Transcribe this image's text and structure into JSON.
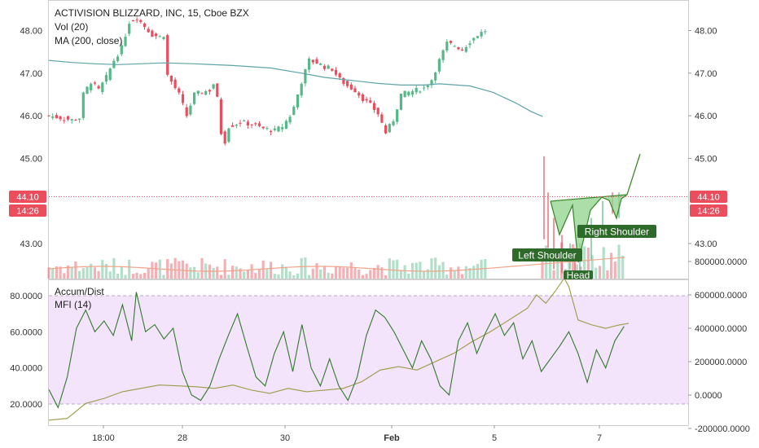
{
  "legend": {
    "symbol": "ACTIVISION BLIZZARD, INC, 15, Cboe BZX",
    "volume": "Vol (20)",
    "ma": "MA (200, close)",
    "accum": "Accum/Dist",
    "mfi": "MFI (14)"
  },
  "price_badge": {
    "price": "44.10",
    "countdown": "14:26"
  },
  "colors": {
    "up": "#53b987",
    "down": "#eb4d5c",
    "ma": "#5ea4a6",
    "pattern_fill": "#8fd38c",
    "pattern_line": "#3f8a2f",
    "label_bg": "#2e6b2a",
    "price_badge": "#eb4d5c",
    "mfi_band": "#f3e3fb",
    "accum_line": "#9c9a45",
    "mfi_line": "#2f7a2a"
  },
  "chart_data": [
    {
      "type": "candlestick",
      "title": "ACTIVISION BLIZZARD, INC, 15, Cboe BZX",
      "y_axis_ticks": [
        43.0,
        45.0,
        46.0,
        47.0,
        48.0
      ],
      "ylim": [
        42.2,
        48.45
      ],
      "x_axis_ticks": [
        "18:00",
        "28",
        "30",
        "Feb",
        "5",
        "7"
      ],
      "last_price": 44.1,
      "close_path": [
        [
          0,
          46.0
        ],
        [
          3,
          45.95
        ],
        [
          6,
          45.9
        ],
        [
          8,
          45.95
        ],
        [
          9,
          46.5
        ],
        [
          11,
          46.8
        ],
        [
          13,
          46.6
        ],
        [
          15,
          46.9
        ],
        [
          17,
          47.3
        ],
        [
          19,
          47.6
        ],
        [
          21,
          48.2
        ],
        [
          23,
          48.3
        ],
        [
          25,
          48.1
        ],
        [
          27,
          47.9
        ],
        [
          29,
          47.85
        ],
        [
          30,
          47.9
        ],
        [
          31,
          46.95
        ],
        [
          34,
          46.5
        ],
        [
          36,
          46.0
        ],
        [
          38,
          46.5
        ],
        [
          40,
          46.55
        ],
        [
          42,
          46.6
        ],
        [
          43,
          46.75
        ],
        [
          44,
          46.4
        ],
        [
          45,
          45.6
        ],
        [
          46,
          45.4
        ],
        [
          47,
          45.75
        ],
        [
          50,
          45.85
        ],
        [
          53,
          45.8
        ],
        [
          56,
          45.7
        ],
        [
          59,
          45.65
        ],
        [
          61,
          45.75
        ],
        [
          63,
          46.0
        ],
        [
          64,
          46.2
        ],
        [
          66,
          46.8
        ],
        [
          68,
          47.3
        ],
        [
          70,
          47.25
        ],
        [
          72,
          47.15
        ],
        [
          74,
          47.1
        ],
        [
          76,
          46.85
        ],
        [
          78,
          46.7
        ],
        [
          80,
          46.6
        ],
        [
          82,
          46.4
        ],
        [
          84,
          46.25
        ],
        [
          86,
          46.05
        ],
        [
          88,
          45.6
        ],
        [
          90,
          45.9
        ],
        [
          92,
          46.5
        ],
        [
          94,
          46.55
        ],
        [
          96,
          46.6
        ],
        [
          98,
          46.65
        ],
        [
          100,
          46.85
        ],
        [
          102,
          47.3
        ],
        [
          104,
          47.7
        ],
        [
          106,
          47.65
        ],
        [
          108,
          47.55
        ],
        [
          110,
          47.75
        ],
        [
          112,
          47.9
        ],
        [
          114,
          48.0
        ]
      ],
      "ma_points": [
        [
          0,
          47.3
        ],
        [
          6,
          47.25
        ],
        [
          12,
          47.22
        ],
        [
          18,
          47.2
        ],
        [
          24,
          47.22
        ],
        [
          30,
          47.24
        ],
        [
          38,
          47.22
        ],
        [
          48,
          47.18
        ],
        [
          58,
          47.12
        ],
        [
          66,
          47.0
        ],
        [
          72,
          46.9
        ],
        [
          80,
          46.82
        ],
        [
          86,
          46.76
        ],
        [
          92,
          46.72
        ],
        [
          98,
          46.72
        ],
        [
          102,
          46.75
        ],
        [
          110,
          46.7
        ],
        [
          116,
          46.55
        ],
        [
          122,
          46.3
        ],
        [
          126,
          46.1
        ],
        [
          129,
          45.98
        ]
      ],
      "volume": {
        "name": "Vol (20)"
      },
      "pattern": {
        "name": "Inverse Head and Shoulders",
        "labels": [
          "Left Shoulder",
          "Head",
          "Right Shoulder"
        ]
      }
    },
    {
      "type": "line",
      "series": [
        {
          "name": "Accum/Dist"
        },
        {
          "name": "MFI (14)"
        }
      ],
      "left_ticks": [
        20.0,
        40.0,
        60.0,
        80.0
      ],
      "left_tick_labels": [
        "20.0000",
        "40.0000",
        "60.0000",
        "80.0000"
      ],
      "right_ticks": [
        -200000,
        0,
        200000,
        400000,
        600000,
        800000
      ],
      "right_tick_labels": [
        "-200000.0000",
        "0.0000",
        "200000.0000",
        "400000.0000",
        "600000.0000",
        "800000.0000"
      ],
      "mfi_band": [
        20,
        80
      ],
      "mfi": [
        [
          0,
          28
        ],
        [
          2,
          18
        ],
        [
          4,
          35
        ],
        [
          6,
          62
        ],
        [
          8,
          72
        ],
        [
          10,
          60
        ],
        [
          12,
          66
        ],
        [
          14,
          58
        ],
        [
          16,
          75
        ],
        [
          18,
          55
        ],
        [
          19,
          82
        ],
        [
          21,
          60
        ],
        [
          23,
          64
        ],
        [
          25,
          56
        ],
        [
          27,
          62
        ],
        [
          29,
          38
        ],
        [
          31,
          25
        ],
        [
          33,
          22
        ],
        [
          35,
          30
        ],
        [
          37,
          45
        ],
        [
          39,
          58
        ],
        [
          41,
          70
        ],
        [
          43,
          52
        ],
        [
          45,
          35
        ],
        [
          47,
          30
        ],
        [
          49,
          48
        ],
        [
          51,
          60
        ],
        [
          53,
          38
        ],
        [
          55,
          64
        ],
        [
          57,
          40
        ],
        [
          59,
          30
        ],
        [
          61,
          45
        ],
        [
          63,
          30
        ],
        [
          65,
          22
        ],
        [
          67,
          35
        ],
        [
          69,
          58
        ],
        [
          71,
          72
        ],
        [
          73,
          68
        ],
        [
          75,
          60
        ],
        [
          77,
          50
        ],
        [
          79,
          40
        ],
        [
          81,
          55
        ],
        [
          83,
          45
        ],
        [
          85,
          30
        ],
        [
          87,
          25
        ],
        [
          89,
          55
        ],
        [
          91,
          65
        ],
        [
          93,
          48
        ],
        [
          95,
          60
        ],
        [
          97,
          70
        ],
        [
          99,
          58
        ],
        [
          101,
          65
        ],
        [
          103,
          45
        ],
        [
          105,
          55
        ],
        [
          107,
          38
        ],
        [
          109,
          45
        ],
        [
          111,
          52
        ],
        [
          113,
          60
        ],
        [
          115,
          48
        ],
        [
          117,
          32
        ],
        [
          119,
          50
        ],
        [
          121,
          40
        ],
        [
          123,
          55
        ],
        [
          125,
          63
        ]
      ],
      "accum": [
        [
          0,
          -150000
        ],
        [
          4,
          -140000
        ],
        [
          8,
          -50000
        ],
        [
          12,
          -20000
        ],
        [
          16,
          20000
        ],
        [
          20,
          40000
        ],
        [
          24,
          60000
        ],
        [
          28,
          55000
        ],
        [
          32,
          50000
        ],
        [
          36,
          40000
        ],
        [
          40,
          60000
        ],
        [
          44,
          30000
        ],
        [
          48,
          10000
        ],
        [
          52,
          40000
        ],
        [
          56,
          20000
        ],
        [
          60,
          30000
        ],
        [
          64,
          40000
        ],
        [
          68,
          80000
        ],
        [
          72,
          150000
        ],
        [
          76,
          170000
        ],
        [
          80,
          150000
        ],
        [
          84,
          200000
        ],
        [
          88,
          250000
        ],
        [
          92,
          320000
        ],
        [
          96,
          380000
        ],
        [
          100,
          450000
        ],
        [
          104,
          520000
        ],
        [
          106,
          600000
        ],
        [
          108,
          550000
        ],
        [
          110,
          620000
        ],
        [
          112,
          700000
        ],
        [
          113,
          650000
        ],
        [
          115,
          450000
        ],
        [
          118,
          420000
        ],
        [
          121,
          400000
        ],
        [
          124,
          420000
        ],
        [
          126,
          430000
        ]
      ]
    }
  ]
}
